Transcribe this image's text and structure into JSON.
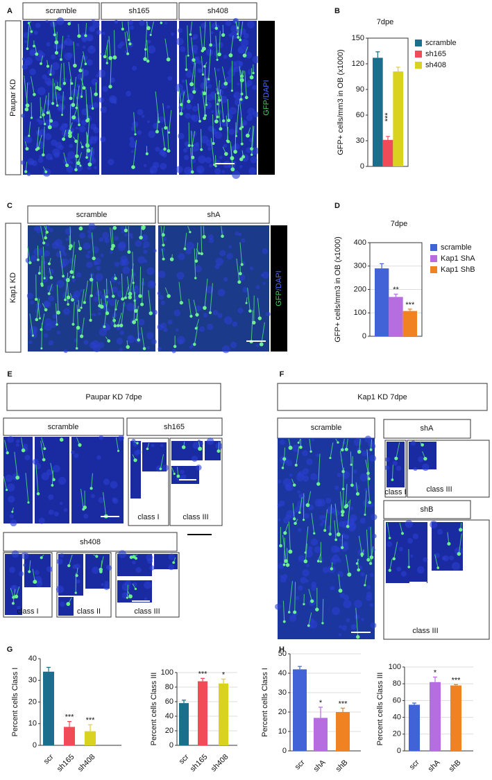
{
  "labels": [
    "A",
    "B",
    "C",
    "D",
    "E",
    "F",
    "G",
    "H"
  ],
  "panel_a": {
    "side": "Paupar KD",
    "columns": [
      "scramble",
      "sh165",
      "sh408"
    ],
    "stain": [
      "GFP",
      "/DAPI"
    ]
  },
  "panel_c": {
    "side": "Kap1 KD",
    "columns": [
      "scramble",
      "shA"
    ],
    "stain": [
      "GFP",
      "/DAPI"
    ]
  },
  "panel_e": {
    "title": "Paupar KD 7dpe",
    "groups": [
      {
        "name": "scramble"
      },
      {
        "name": "sh165",
        "classes": [
          "class I",
          "class III"
        ]
      },
      {
        "name": "sh408",
        "classes": [
          "class I",
          "class II",
          "class III"
        ]
      }
    ]
  },
  "panel_f": {
    "title": "Kap1 KD 7dpe",
    "groups": [
      {
        "name": "scramble"
      },
      {
        "name": "shA",
        "classes": [
          "class I",
          "class III"
        ]
      },
      {
        "name": "shB",
        "classes": [
          "class III"
        ]
      }
    ]
  },
  "chart_data": [
    {
      "type": "bar",
      "title": "7dpe",
      "y_label": "GFP+ cells/mm3 in OB (x1000)",
      "categories": [
        null
      ],
      "ylim": [
        0,
        150
      ],
      "yticks": [
        0,
        30,
        60,
        90,
        120,
        150
      ],
      "grid": false,
      "legend": "right",
      "series": [
        {
          "name": "scramble",
          "color": "#1b6f8c",
          "values": [
            127
          ],
          "errors": [
            7
          ]
        },
        {
          "name": "sh165",
          "color": "#f04b57",
          "values": [
            31
          ],
          "errors": [
            4
          ],
          "significance": [
            "***"
          ]
        },
        {
          "name": "sh408",
          "color": "#d9d21f",
          "values": [
            111
          ],
          "errors": [
            5
          ]
        }
      ]
    },
    {
      "type": "bar",
      "title": "7dpe",
      "y_label": "GFP+ cells/mm3 in OB (x1000)",
      "categories": [
        null
      ],
      "ylim": [
        0,
        400
      ],
      "yticks": [
        0,
        100,
        200,
        300,
        400
      ],
      "grid": true,
      "legend": "right",
      "series": [
        {
          "name": "scramble",
          "color": "#4262d8",
          "values": [
            290
          ],
          "errors": [
            20
          ]
        },
        {
          "name": "Kap1 ShA",
          "color": "#b66de0",
          "values": [
            168
          ],
          "errors": [
            12
          ],
          "significance": [
            "**"
          ]
        },
        {
          "name": "Kap1 ShB",
          "color": "#f18222",
          "values": [
            108
          ],
          "errors": [
            8
          ],
          "significance": [
            "***"
          ]
        }
      ]
    },
    {
      "type": "bar",
      "y_label": "Percent cells Class I",
      "categories": [
        "scr",
        "sh165",
        "sh408"
      ],
      "values": [
        34,
        8.5,
        6.5
      ],
      "errors": [
        2,
        2.5,
        3
      ],
      "significance": [
        null,
        "***",
        "***"
      ],
      "colors": [
        "#1b6f8c",
        "#f04b57",
        "#d9d21f"
      ],
      "ylim": [
        0,
        40
      ],
      "yticks": [
        0,
        10,
        20,
        30,
        40
      ],
      "grid": false
    },
    {
      "type": "bar",
      "y_label": "Percent cells Class III",
      "categories": [
        "scr",
        "sh165",
        "sh408"
      ],
      "values": [
        58,
        88,
        85
      ],
      "errors": [
        4,
        4,
        6
      ],
      "significance": [
        null,
        "***",
        "*"
      ],
      "colors": [
        "#1b6f8c",
        "#f04b57",
        "#d9d21f"
      ],
      "ylim": [
        0,
        100
      ],
      "yticks": [
        0,
        20,
        40,
        60,
        80,
        100
      ],
      "grid": true
    },
    {
      "type": "bar",
      "y_label": "Percent cells Class I",
      "categories": [
        "scr",
        "shA",
        "shB"
      ],
      "values": [
        42,
        17,
        20
      ],
      "errors": [
        1.5,
        5.5,
        2
      ],
      "significance": [
        null,
        "*",
        "***"
      ],
      "colors": [
        "#4262d8",
        "#b66de0",
        "#f18222"
      ],
      "ylim": [
        0,
        50
      ],
      "yticks": [
        0,
        10,
        20,
        30,
        40,
        50
      ],
      "grid": true
    },
    {
      "type": "bar",
      "y_label": "Percent cells Class III",
      "categories": [
        "scr",
        "shA",
        "shB"
      ],
      "values": [
        55,
        82,
        78
      ],
      "errors": [
        2,
        6,
        1
      ],
      "significance": [
        null,
        "*",
        "***"
      ],
      "colors": [
        "#4262d8",
        "#b66de0",
        "#f18222"
      ],
      "ylim": [
        0,
        100
      ],
      "yticks": [
        0,
        20,
        40,
        60,
        80,
        100
      ],
      "grid": true
    }
  ]
}
